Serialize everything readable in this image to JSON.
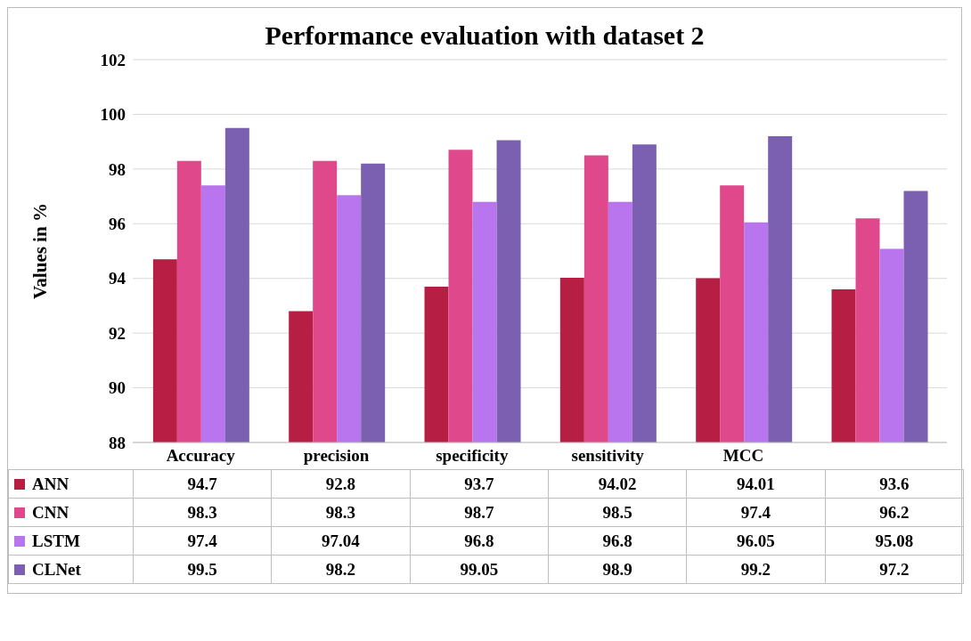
{
  "chart_data": {
    "type": "bar",
    "title": "Performance evaluation with dataset 2",
    "ylabel": "Values in %",
    "categories": [
      "Accuracy",
      "precision",
      "specificity",
      "sensitivity",
      "MCC",
      null
    ],
    "series": [
      {
        "name": "ANN",
        "color": "#b61e44",
        "values": [
          94.7,
          92.8,
          93.7,
          94.02,
          94.01,
          93.6
        ]
      },
      {
        "name": "CNN",
        "color": "#e0488c",
        "values": [
          98.3,
          98.3,
          98.7,
          98.5,
          97.4,
          96.2
        ]
      },
      {
        "name": "LSTM",
        "color": "#b875ee",
        "values": [
          97.4,
          97.04,
          96.8,
          96.8,
          96.05,
          95.08
        ]
      },
      {
        "name": "CLNet",
        "color": "#7b5fb0",
        "values": [
          99.5,
          98.2,
          99.05,
          98.9,
          99.2,
          97.2
        ]
      }
    ],
    "ylim": [
      88,
      102
    ],
    "yticks": [
      88,
      90,
      92,
      94,
      96,
      98,
      100,
      102
    ],
    "grid": "y",
    "legend": "bottom",
    "data_labels": true
  }
}
